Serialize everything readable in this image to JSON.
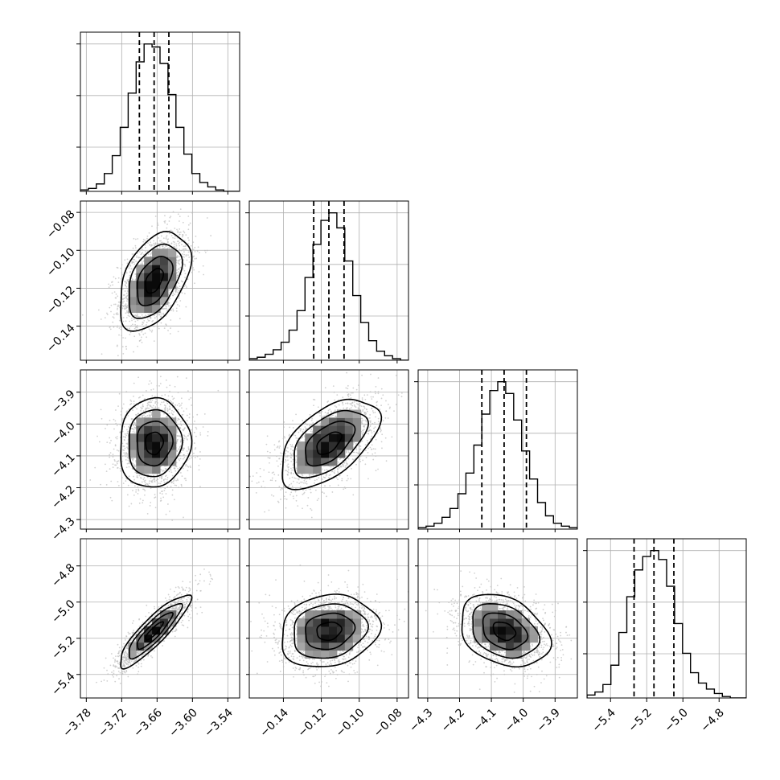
{
  "chart_data": {
    "type": "corner",
    "parameters": [
      {
        "index": 0,
        "range": [
          -3.79,
          -3.52
        ],
        "ticks": [
          -3.78,
          -3.72,
          -3.66,
          -3.6,
          -3.54
        ],
        "tick_labels": [
          "−3.78",
          "−3.72",
          "−3.66",
          "−3.60",
          "−3.54"
        ],
        "quantiles": [
          -3.69,
          -3.665,
          -3.64
        ],
        "hist_edges": [
          -3.79,
          -3.7765,
          -3.763,
          -3.7495,
          -3.736,
          -3.7225,
          -3.709,
          -3.6955,
          -3.682,
          -3.6685,
          -3.655,
          -3.6415,
          -3.628,
          -3.6145,
          -3.601,
          -3.5875,
          -3.574,
          -3.5605,
          -3.547,
          -3.5335,
          -3.52
        ],
        "hist_counts": [
          0.01,
          0.02,
          0.05,
          0.12,
          0.24,
          0.43,
          0.66,
          0.87,
          0.99,
          0.97,
          0.86,
          0.65,
          0.43,
          0.25,
          0.12,
          0.06,
          0.03,
          0.01,
          0.0,
          0.0
        ]
      },
      {
        "index": 1,
        "range": [
          -0.158,
          -0.074
        ],
        "ticks": [
          -0.14,
          -0.12,
          -0.1,
          -0.08
        ],
        "tick_labels": [
          "−0.14",
          "−0.12",
          "−0.10",
          "−0.08"
        ],
        "quantiles": [
          -0.124,
          -0.116,
          -0.108
        ],
        "hist_edges": [
          -0.158,
          -0.1538,
          -0.1496,
          -0.1454,
          -0.1412,
          -0.137,
          -0.1328,
          -0.1286,
          -0.1244,
          -0.1202,
          -0.116,
          -0.1118,
          -0.1076,
          -0.1034,
          -0.0992,
          -0.095,
          -0.0908,
          -0.0866,
          -0.0824,
          -0.0782,
          -0.074
        ],
        "hist_counts": [
          0.01,
          0.02,
          0.04,
          0.07,
          0.12,
          0.2,
          0.33,
          0.55,
          0.77,
          0.93,
          0.98,
          0.88,
          0.66,
          0.43,
          0.25,
          0.13,
          0.06,
          0.03,
          0.01,
          0.0
        ]
      },
      {
        "index": 2,
        "range": [
          -4.33,
          -3.83
        ],
        "ticks": [
          -4.3,
          -4.2,
          -4.1,
          -4.0,
          -3.9
        ],
        "tick_labels": [
          "−4.3",
          "−4.2",
          "−4.1",
          "−4.0",
          "−3.9"
        ],
        "quantiles": [
          -4.13,
          -4.06,
          -3.99
        ],
        "hist_edges": [
          -4.33,
          -4.305,
          -4.28,
          -4.255,
          -4.23,
          -4.205,
          -4.18,
          -4.155,
          -4.13,
          -4.105,
          -4.08,
          -4.055,
          -4.03,
          -4.005,
          -3.98,
          -3.955,
          -3.93,
          -3.905,
          -3.88,
          -3.855,
          -3.83
        ],
        "hist_counts": [
          0.01,
          0.02,
          0.04,
          0.08,
          0.14,
          0.24,
          0.38,
          0.57,
          0.78,
          0.94,
          1.0,
          0.92,
          0.74,
          0.53,
          0.34,
          0.18,
          0.09,
          0.04,
          0.02,
          0.01
        ]
      },
      {
        "index": 3,
        "range": [
          -5.53,
          -4.65
        ],
        "ticks": [
          -5.4,
          -5.2,
          -5.0,
          -4.8
        ],
        "tick_labels": [
          "−5.4",
          "−5.2",
          "−5.0",
          "−4.8"
        ],
        "quantiles": [
          -5.27,
          -5.16,
          -5.05
        ],
        "hist_edges": [
          -5.53,
          -5.486,
          -5.442,
          -5.398,
          -5.354,
          -5.31,
          -5.266,
          -5.222,
          -5.178,
          -5.134,
          -5.09,
          -5.046,
          -5.002,
          -4.958,
          -4.914,
          -4.87,
          -4.826,
          -4.782,
          -4.738,
          -4.694,
          -4.65
        ],
        "hist_counts": [
          0.02,
          0.04,
          0.09,
          0.22,
          0.44,
          0.68,
          0.86,
          0.95,
          0.99,
          0.93,
          0.75,
          0.5,
          0.3,
          0.17,
          0.1,
          0.06,
          0.03,
          0.01,
          0.0,
          0.0
        ]
      }
    ],
    "pairs": [
      {
        "x": 0,
        "y": 1,
        "center": [
          -3.665,
          -0.116
        ],
        "sigma": [
          0.03,
          0.013
        ],
        "rho": 0.45
      },
      {
        "x": 0,
        "y": 2,
        "center": [
          -3.665,
          -4.06
        ],
        "sigma": [
          0.03,
          0.07
        ],
        "rho": 0.05
      },
      {
        "x": 1,
        "y": 2,
        "center": [
          -0.116,
          -4.06
        ],
        "sigma": [
          0.013,
          0.07
        ],
        "rho": 0.55
      },
      {
        "x": 0,
        "y": 3,
        "center": [
          -3.665,
          -5.16
        ],
        "sigma": [
          0.03,
          0.1
        ],
        "rho": 0.88
      },
      {
        "x": 1,
        "y": 3,
        "center": [
          -0.116,
          -5.16
        ],
        "sigma": [
          0.013,
          0.1
        ],
        "rho": 0.15
      },
      {
        "x": 2,
        "y": 3,
        "center": [
          -4.06,
          -5.16
        ],
        "sigma": [
          0.07,
          0.1
        ],
        "rho": -0.3
      }
    ],
    "grid": true,
    "colors": {
      "lines": "#000000",
      "points": "#bdbdbd",
      "grid": "#b0b0b0"
    }
  }
}
